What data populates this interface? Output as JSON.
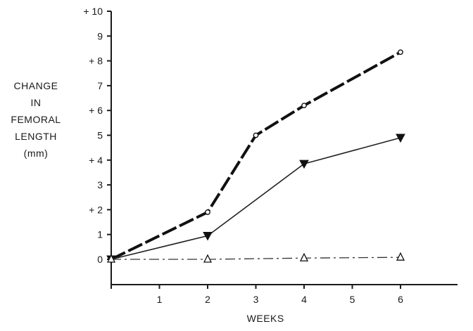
{
  "chart_data": {
    "type": "line",
    "title": "",
    "xlabel": "WEEKS",
    "ylabel_lines": [
      "CHANGE",
      "IN",
      "FEMORAL",
      "LENGTH",
      "(mm)"
    ],
    "xlim": [
      0,
      7
    ],
    "ylim": [
      -1,
      10
    ],
    "grid": false,
    "x_ticks": [
      {
        "value": 1,
        "label": "1"
      },
      {
        "value": 2,
        "label": "2"
      },
      {
        "value": 3,
        "label": "3"
      },
      {
        "value": 4,
        "label": "4"
      },
      {
        "value": 5,
        "label": "5"
      },
      {
        "value": 6,
        "label": "6"
      }
    ],
    "y_ticks": [
      {
        "value": 0,
        "label": "0"
      },
      {
        "value": 1,
        "label": "1"
      },
      {
        "value": 2,
        "label": "+ 2"
      },
      {
        "value": 3,
        "label": "3"
      },
      {
        "value": 4,
        "label": "+ 4"
      },
      {
        "value": 5,
        "label": "5"
      },
      {
        "value": 6,
        "label": "+ 6"
      },
      {
        "value": 7,
        "label": "7"
      },
      {
        "value": 8,
        "label": "+ 8"
      },
      {
        "value": 9,
        "label": "9"
      },
      {
        "value": 10,
        "label": "+ 10"
      }
    ],
    "series": [
      {
        "name": "open-circle-series",
        "marker": "circle",
        "line": "heavy-dash",
        "x": [
          0,
          2,
          3,
          4,
          6
        ],
        "y": [
          0,
          1.9,
          5.0,
          6.2,
          8.35
        ]
      },
      {
        "name": "filled-triangle-series",
        "marker": "triangle-down-filled",
        "line": "solid",
        "x": [
          0,
          2,
          4,
          6
        ],
        "y": [
          0,
          0.95,
          3.85,
          4.9
        ]
      },
      {
        "name": "open-triangle-series",
        "marker": "triangle-up-open",
        "line": "dash-dot",
        "x": [
          0,
          2,
          4,
          6
        ],
        "y": [
          0,
          0,
          0.05,
          0.08
        ]
      }
    ]
  }
}
